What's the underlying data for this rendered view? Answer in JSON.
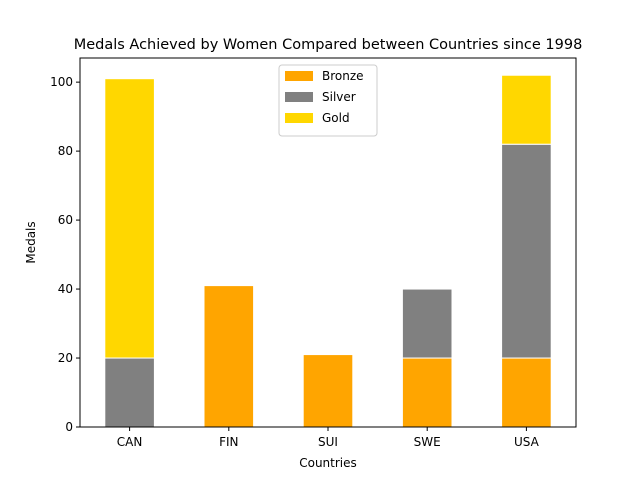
{
  "chart_data": {
    "type": "bar",
    "stacked": true,
    "title": "Medals Achieved by Women Compared between Countries since 1998",
    "xlabel": "Countries",
    "ylabel": "Medals",
    "categories": [
      "CAN",
      "FIN",
      "SUI",
      "SWE",
      "USA"
    ],
    "series": [
      {
        "name": "Bronze",
        "color": "#ffa500",
        "values": [
          0,
          41,
          21,
          20,
          20
        ]
      },
      {
        "name": "Silver",
        "color": "#808080",
        "values": [
          20,
          0,
          0,
          20,
          62
        ]
      },
      {
        "name": "Gold",
        "color": "#ffd700",
        "values": [
          81,
          0,
          0,
          0,
          20
        ]
      }
    ],
    "ylim": [
      0,
      107
    ],
    "yticks": [
      0,
      20,
      40,
      60,
      80,
      100
    ],
    "grid": false,
    "legend_position": "top-center"
  }
}
